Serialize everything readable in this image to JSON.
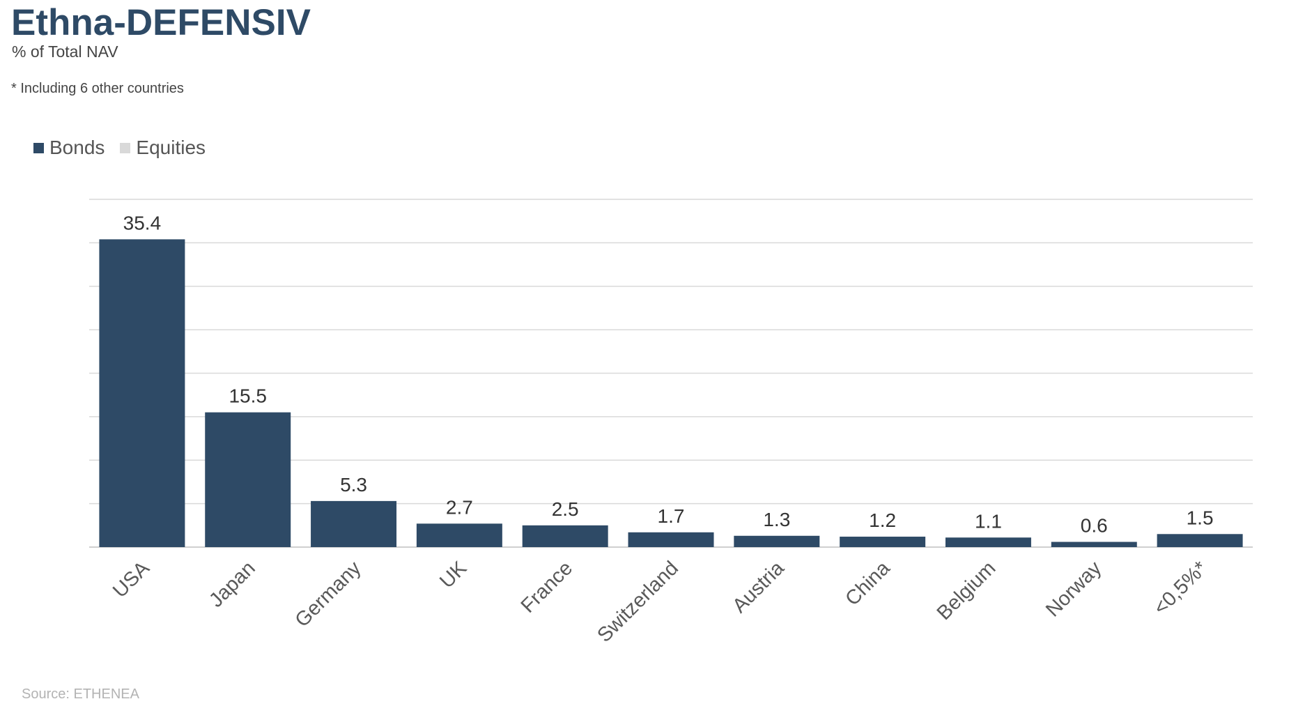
{
  "header": {
    "title": "Ethna-DEFENSIV",
    "subtitle": "% of Total NAV",
    "footnote": "* Including 6 other countries"
  },
  "legend": [
    {
      "label": "Bonds",
      "color": "#2e4a66"
    },
    {
      "label": "Equities",
      "color": "#d9d9d9"
    }
  ],
  "source": "Source: ETHENEA",
  "chart_data": {
    "type": "bar",
    "categories": [
      "USA",
      "Japan",
      "Germany",
      "UK",
      "France",
      "Switzerland",
      "Austria",
      "China",
      "Belgium",
      "Norway",
      "<0,5%*"
    ],
    "series": [
      {
        "name": "Bonds",
        "color": "#2e4a66",
        "values": [
          35.4,
          15.5,
          5.3,
          2.7,
          2.5,
          1.7,
          1.3,
          1.2,
          1.1,
          0.6,
          1.5
        ]
      },
      {
        "name": "Equities",
        "color": "#d9d9d9",
        "values": [
          0,
          0,
          0,
          0,
          0,
          0,
          0,
          0,
          0,
          0,
          0
        ]
      }
    ],
    "data_labels": [
      "35.4",
      "15.5",
      "5.3",
      "2.7",
      "2.5",
      "1.7",
      "1.3",
      "1.2",
      "1.1",
      "0.6",
      "1.5"
    ],
    "ylim": [
      0,
      40
    ],
    "gridlines": true,
    "y_tick_labels_shown": false,
    "legend_position": "top-left"
  }
}
